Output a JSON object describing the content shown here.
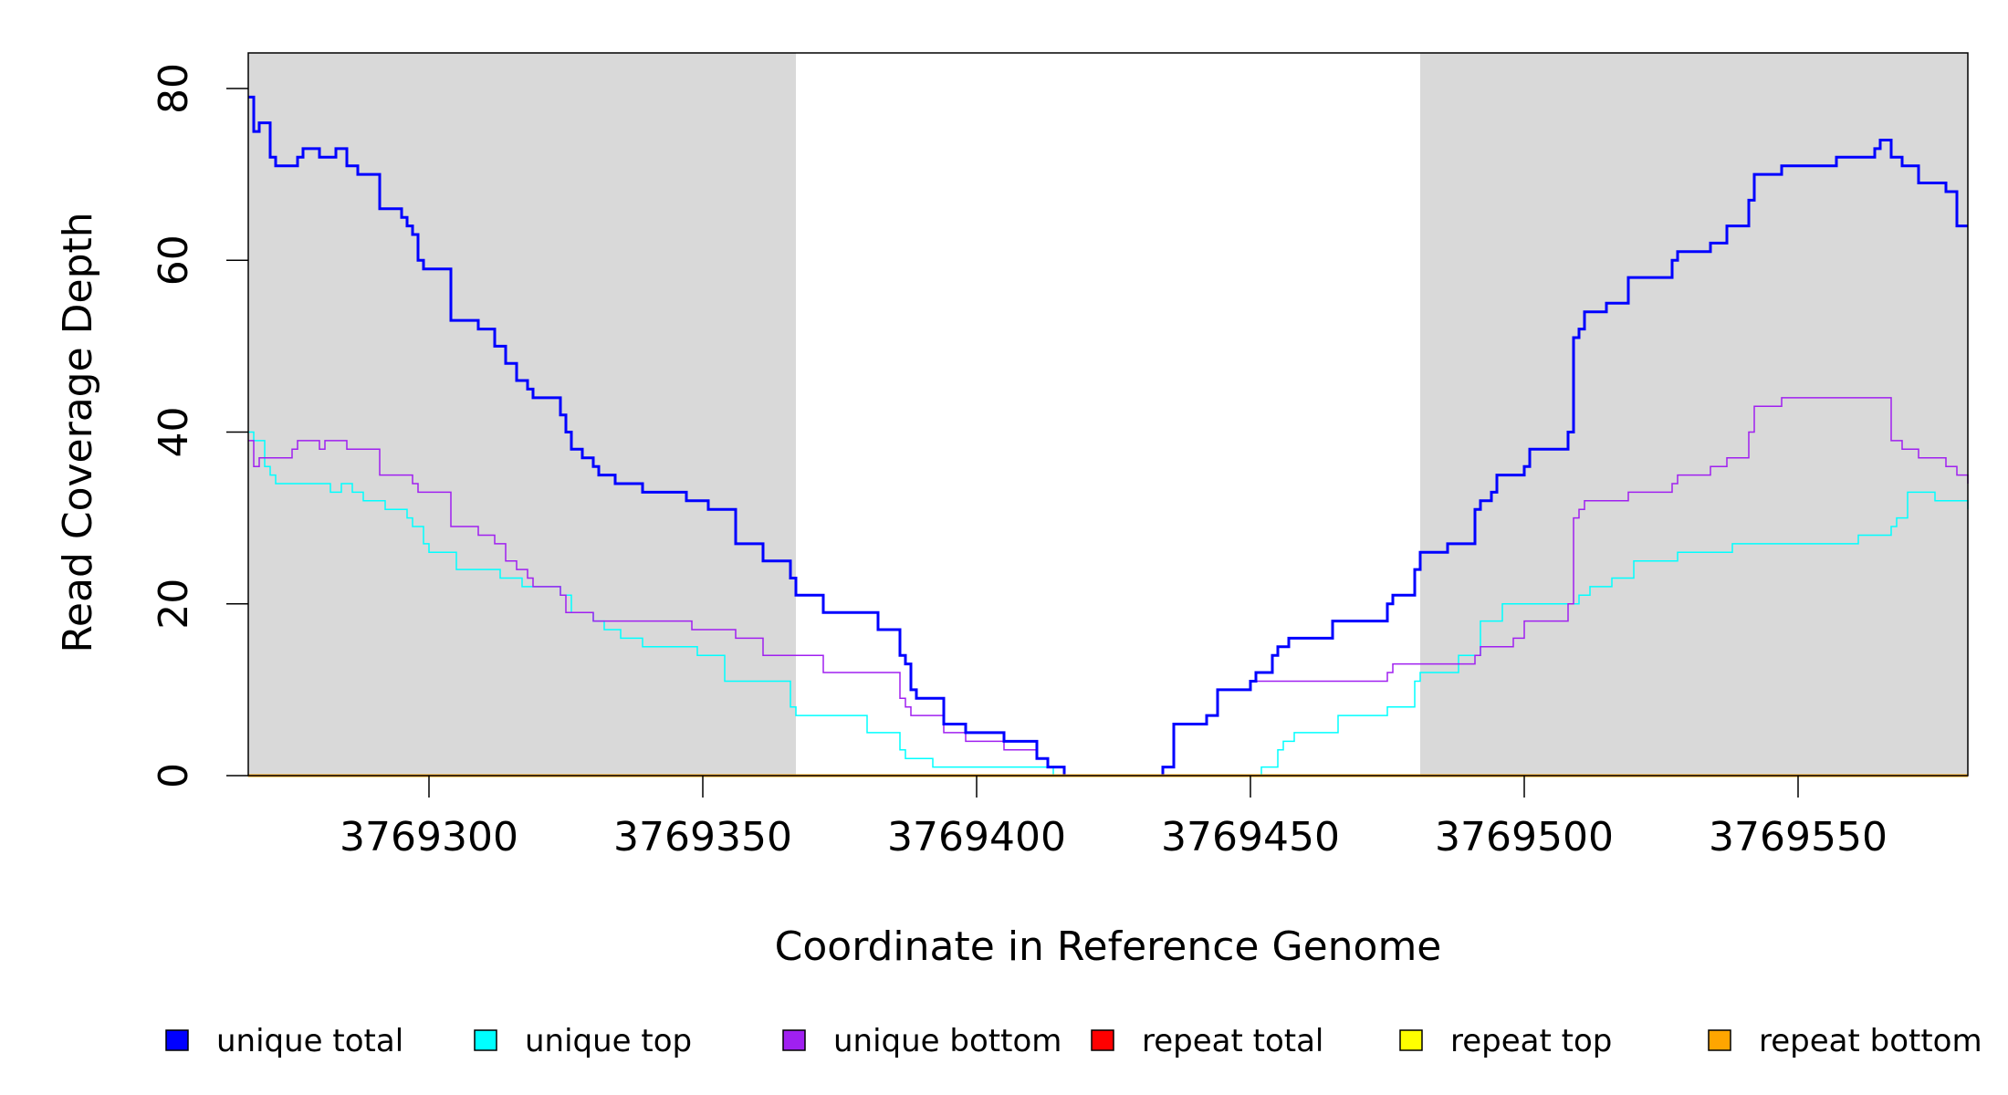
{
  "chart_data": {
    "type": "line",
    "xlabel": "Coordinate in Reference Genome",
    "ylabel": "Read Coverage Depth",
    "xlim": [
      3769267,
      3769581
    ],
    "ylim": [
      0,
      80
    ],
    "x_ticks": [
      3769300,
      3769350,
      3769400,
      3769450,
      3769500,
      3769550
    ],
    "x_tick_labels": [
      "3769300",
      "3769350",
      "3769400",
      "3769450",
      "3769500",
      "3769550"
    ],
    "y_ticks": [
      0,
      20,
      40,
      60,
      80
    ],
    "y_tick_labels": [
      "0",
      "20",
      "40",
      "60",
      "80"
    ],
    "shaded_regions": [
      [
        3769267,
        3769367
      ],
      [
        3769481,
        3769581
      ]
    ],
    "shade_color": "#d9d9d9",
    "legend_position": "bottom",
    "series": [
      {
        "name": "unique total",
        "color": "#0000ff",
        "width": 3,
        "points": [
          [
            3769267,
            79
          ],
          [
            3769268,
            75
          ],
          [
            3769269,
            76
          ],
          [
            3769271,
            72
          ],
          [
            3769272,
            71
          ],
          [
            3769276,
            72
          ],
          [
            3769277,
            73
          ],
          [
            3769280,
            72
          ],
          [
            3769283,
            73
          ],
          [
            3769285,
            71
          ],
          [
            3769287,
            70
          ],
          [
            3769291,
            66
          ],
          [
            3769295,
            65
          ],
          [
            3769296,
            64
          ],
          [
            3769297,
            63
          ],
          [
            3769298,
            60
          ],
          [
            3769299,
            59
          ],
          [
            3769304,
            53
          ],
          [
            3769309,
            52
          ],
          [
            3769312,
            50
          ],
          [
            3769314,
            48
          ],
          [
            3769316,
            46
          ],
          [
            3769318,
            45
          ],
          [
            3769319,
            44
          ],
          [
            3769324,
            42
          ],
          [
            3769325,
            40
          ],
          [
            3769326,
            38
          ],
          [
            3769328,
            37
          ],
          [
            3769330,
            36
          ],
          [
            3769331,
            35
          ],
          [
            3769334,
            34
          ],
          [
            3769339,
            33
          ],
          [
            3769347,
            32
          ],
          [
            3769351,
            31
          ],
          [
            3769356,
            27
          ],
          [
            3769361,
            25
          ],
          [
            3769366,
            23
          ],
          [
            3769367,
            21
          ],
          [
            3769372,
            19
          ],
          [
            3769382,
            17
          ],
          [
            3769386,
            14
          ],
          [
            3769387,
            13
          ],
          [
            3769388,
            10
          ],
          [
            3769389,
            9
          ],
          [
            3769394,
            6
          ],
          [
            3769398,
            5
          ],
          [
            3769402,
            5
          ],
          [
            3769405,
            4
          ],
          [
            3769411,
            2
          ],
          [
            3769413,
            1
          ],
          [
            3769416,
            0
          ],
          [
            3769434,
            1
          ],
          [
            3769436,
            6
          ],
          [
            3769442,
            7
          ],
          [
            3769444,
            10
          ],
          [
            3769450,
            11
          ],
          [
            3769451,
            12
          ],
          [
            3769454,
            14
          ],
          [
            3769455,
            15
          ],
          [
            3769457,
            16
          ],
          [
            3769465,
            18
          ],
          [
            3769475,
            20
          ],
          [
            3769476,
            21
          ],
          [
            3769480,
            24
          ],
          [
            3769481,
            26
          ],
          [
            3769486,
            27
          ],
          [
            3769491,
            31
          ],
          [
            3769492,
            32
          ],
          [
            3769494,
            33
          ],
          [
            3769495,
            35
          ],
          [
            3769500,
            36
          ],
          [
            3769501,
            38
          ],
          [
            3769508,
            40
          ],
          [
            3769509,
            51
          ],
          [
            3769510,
            52
          ],
          [
            3769511,
            54
          ],
          [
            3769515,
            55
          ],
          [
            3769519,
            58
          ],
          [
            3769527,
            60
          ],
          [
            3769528,
            61
          ],
          [
            3769534,
            62
          ],
          [
            3769537,
            64
          ],
          [
            3769541,
            67
          ],
          [
            3769542,
            70
          ],
          [
            3769547,
            71
          ],
          [
            3769557,
            72
          ],
          [
            3769564,
            73
          ],
          [
            3769565,
            74
          ],
          [
            3769567,
            72
          ],
          [
            3769569,
            71
          ],
          [
            3769572,
            69
          ],
          [
            3769577,
            68
          ],
          [
            3769579,
            64
          ],
          [
            3769581,
            64
          ]
        ]
      },
      {
        "name": "unique top",
        "color": "#00ffff",
        "width": 1.5,
        "points": [
          [
            3769267,
            40
          ],
          [
            3769268,
            39
          ],
          [
            3769270,
            36
          ],
          [
            3769271,
            35
          ],
          [
            3769272,
            34
          ],
          [
            3769282,
            33
          ],
          [
            3769284,
            34
          ],
          [
            3769286,
            33
          ],
          [
            3769288,
            32
          ],
          [
            3769292,
            31
          ],
          [
            3769296,
            30
          ],
          [
            3769297,
            29
          ],
          [
            3769299,
            27
          ],
          [
            3769300,
            26
          ],
          [
            3769305,
            24
          ],
          [
            3769313,
            23
          ],
          [
            3769317,
            22
          ],
          [
            3769324,
            21
          ],
          [
            3769326,
            19
          ],
          [
            3769330,
            18
          ],
          [
            3769332,
            17
          ],
          [
            3769335,
            16
          ],
          [
            3769339,
            15
          ],
          [
            3769349,
            14
          ],
          [
            3769354,
            11
          ],
          [
            3769366,
            8
          ],
          [
            3769367,
            7
          ],
          [
            3769380,
            5
          ],
          [
            3769386,
            3
          ],
          [
            3769387,
            2
          ],
          [
            3769392,
            1
          ],
          [
            3769414,
            0
          ],
          [
            3769452,
            1
          ],
          [
            3769455,
            3
          ],
          [
            3769456,
            4
          ],
          [
            3769458,
            5
          ],
          [
            3769466,
            7
          ],
          [
            3769475,
            8
          ],
          [
            3769480,
            11
          ],
          [
            3769481,
            12
          ],
          [
            3769488,
            14
          ],
          [
            3769492,
            18
          ],
          [
            3769496,
            20
          ],
          [
            3769510,
            21
          ],
          [
            3769512,
            22
          ],
          [
            3769516,
            23
          ],
          [
            3769520,
            25
          ],
          [
            3769528,
            26
          ],
          [
            3769538,
            27
          ],
          [
            3769561,
            28
          ],
          [
            3769567,
            29
          ],
          [
            3769568,
            30
          ],
          [
            3769570,
            33
          ],
          [
            3769575,
            32
          ],
          [
            3769581,
            31
          ]
        ]
      },
      {
        "name": "unique bottom",
        "color": "#a020f0",
        "width": 1.5,
        "points": [
          [
            3769267,
            39
          ],
          [
            3769268,
            36
          ],
          [
            3769269,
            37
          ],
          [
            3769275,
            38
          ],
          [
            3769276,
            39
          ],
          [
            3769280,
            38
          ],
          [
            3769281,
            39
          ],
          [
            3769285,
            38
          ],
          [
            3769291,
            35
          ],
          [
            3769297,
            34
          ],
          [
            3769298,
            33
          ],
          [
            3769304,
            29
          ],
          [
            3769309,
            28
          ],
          [
            3769312,
            27
          ],
          [
            3769314,
            25
          ],
          [
            3769316,
            24
          ],
          [
            3769318,
            23
          ],
          [
            3769319,
            22
          ],
          [
            3769324,
            21
          ],
          [
            3769325,
            19
          ],
          [
            3769330,
            18
          ],
          [
            3769348,
            17
          ],
          [
            3769356,
            16
          ],
          [
            3769361,
            14
          ],
          [
            3769372,
            12
          ],
          [
            3769386,
            9
          ],
          [
            3769387,
            8
          ],
          [
            3769388,
            7
          ],
          [
            3769394,
            5
          ],
          [
            3769398,
            4
          ],
          [
            3769405,
            3
          ],
          [
            3769411,
            2
          ],
          [
            3769413,
            1
          ],
          [
            3769416,
            0
          ],
          [
            3769434,
            1
          ],
          [
            3769436,
            6
          ],
          [
            3769442,
            7
          ],
          [
            3769444,
            10
          ],
          [
            3769450,
            11
          ],
          [
            3769475,
            12
          ],
          [
            3769476,
            13
          ],
          [
            3769491,
            14
          ],
          [
            3769492,
            15
          ],
          [
            3769498,
            16
          ],
          [
            3769500,
            18
          ],
          [
            3769508,
            20
          ],
          [
            3769509,
            30
          ],
          [
            3769510,
            31
          ],
          [
            3769511,
            32
          ],
          [
            3769519,
            33
          ],
          [
            3769527,
            34
          ],
          [
            3769528,
            35
          ],
          [
            3769534,
            36
          ],
          [
            3769537,
            37
          ],
          [
            3769541,
            40
          ],
          [
            3769542,
            43
          ],
          [
            3769547,
            44
          ],
          [
            3769567,
            39
          ],
          [
            3769569,
            38
          ],
          [
            3769572,
            37
          ],
          [
            3769577,
            36
          ],
          [
            3769579,
            35
          ],
          [
            3769581,
            34
          ]
        ]
      },
      {
        "name": "repeat total",
        "color": "#ff0000",
        "width": 2,
        "points": [
          [
            3769267,
            0
          ],
          [
            3769581,
            0
          ]
        ]
      },
      {
        "name": "repeat top",
        "color": "#ffff00",
        "width": 2,
        "points": [
          [
            3769267,
            0
          ],
          [
            3769581,
            0
          ]
        ]
      },
      {
        "name": "repeat bottom",
        "color": "#ffa500",
        "width": 3,
        "points": [
          [
            3769267,
            0
          ],
          [
            3769581,
            0
          ]
        ]
      }
    ]
  }
}
